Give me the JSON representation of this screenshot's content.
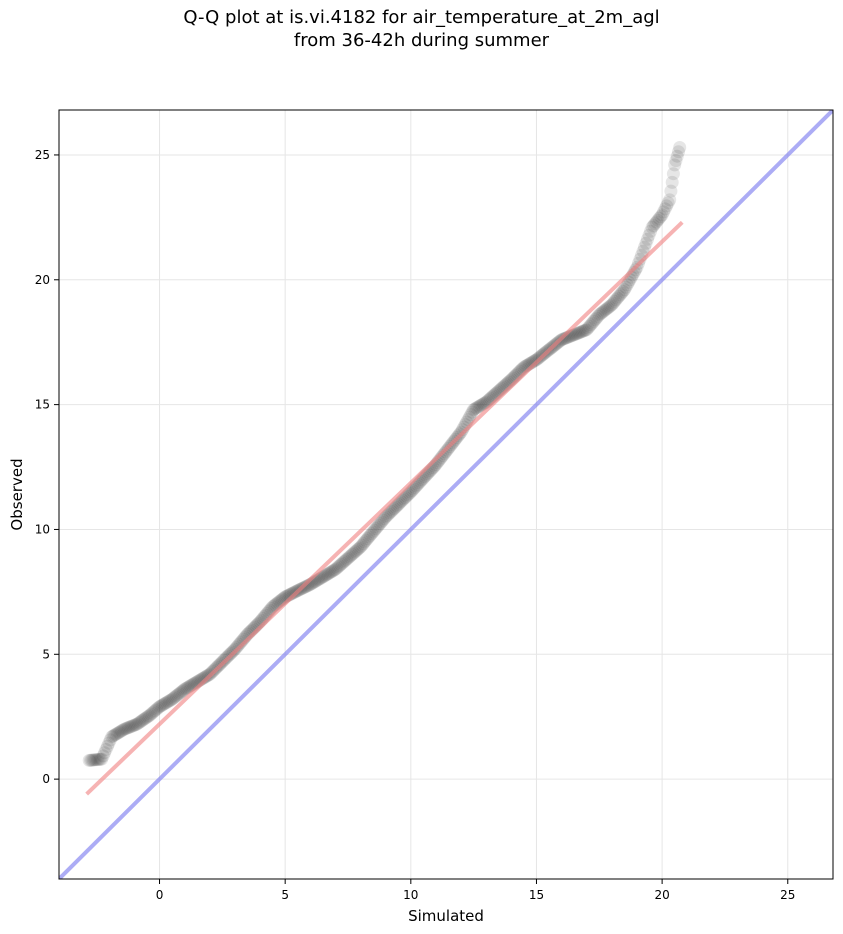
{
  "chart_data": {
    "type": "scatter",
    "title": [
      "Q-Q plot at is.vi.4182 for air_temperature_at_2m_agl",
      "from 36-42h during summer"
    ],
    "xlabel": "Simulated",
    "ylabel": "Observed",
    "xlim": [
      -4.0,
      26.8
    ],
    "ylim": [
      -4.0,
      26.8
    ],
    "xticks": [
      0,
      5,
      10,
      15,
      20,
      25
    ],
    "yticks": [
      0,
      5,
      10,
      15,
      20,
      25
    ],
    "grid": true,
    "colors": {
      "points": "#333333",
      "fit_line": "#f08080",
      "identity_line": "#8080f0",
      "fit_inner": "#8b0000",
      "grid": "#e6e6e6"
    },
    "series": [
      {
        "kind": "quantiles",
        "anchors": [
          [
            -2.8,
            0.75
          ],
          [
            -2.3,
            0.8
          ],
          [
            -1.9,
            1.7
          ],
          [
            -1.4,
            2.0
          ],
          [
            -0.9,
            2.2
          ],
          [
            -0.4,
            2.55
          ],
          [
            0.0,
            2.9
          ],
          [
            0.5,
            3.2
          ],
          [
            1.0,
            3.6
          ],
          [
            1.5,
            3.9
          ],
          [
            2.0,
            4.2
          ],
          [
            2.5,
            4.7
          ],
          [
            3.0,
            5.2
          ],
          [
            3.5,
            5.8
          ],
          [
            4.0,
            6.3
          ],
          [
            4.5,
            6.9
          ],
          [
            5.0,
            7.3
          ],
          [
            6.0,
            7.8
          ],
          [
            7.0,
            8.4
          ],
          [
            8.0,
            9.3
          ],
          [
            9.0,
            10.5
          ],
          [
            10.0,
            11.5
          ],
          [
            11.0,
            12.6
          ],
          [
            12.0,
            13.9
          ],
          [
            12.5,
            14.8
          ],
          [
            13.0,
            15.1
          ],
          [
            14.0,
            16.0
          ],
          [
            14.5,
            16.5
          ],
          [
            15.0,
            16.8
          ],
          [
            15.5,
            17.2
          ],
          [
            16.0,
            17.6
          ],
          [
            16.5,
            17.8
          ],
          [
            17.0,
            18.0
          ],
          [
            17.5,
            18.6
          ],
          [
            18.0,
            19.0
          ],
          [
            18.5,
            19.6
          ],
          [
            19.0,
            20.5
          ],
          [
            19.3,
            21.3
          ],
          [
            19.6,
            22.1
          ],
          [
            20.0,
            22.6
          ],
          [
            20.3,
            23.2
          ],
          [
            20.5,
            24.6
          ],
          [
            20.7,
            25.3
          ]
        ]
      },
      {
        "kind": "fit_line",
        "points": [
          [
            -2.9,
            -0.6
          ],
          [
            20.8,
            22.3
          ]
        ]
      },
      {
        "kind": "identity_line",
        "points": [
          [
            -4.0,
            -4.0
          ],
          [
            26.8,
            26.8
          ]
        ]
      }
    ]
  }
}
